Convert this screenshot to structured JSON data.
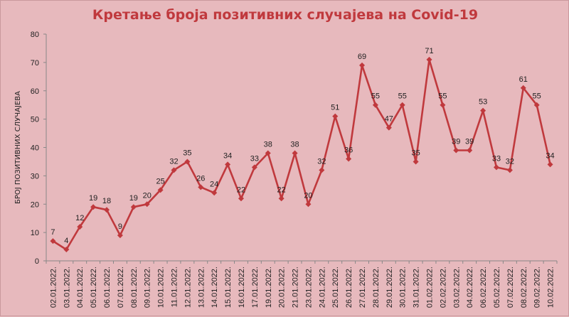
{
  "chart_data": {
    "type": "line",
    "title": "Кретање броја позитивних случајева на Covid-19",
    "xlabel": "",
    "ylabel": "БРОЈ ПОЗИТИВНИХ СЛУЧАЈЕВА",
    "ylim": [
      0,
      80
    ],
    "yticks": [
      0,
      10,
      20,
      30,
      40,
      50,
      60,
      70,
      80
    ],
    "grid": false,
    "legend": "none",
    "line_color": "#c0393d",
    "categories": [
      "02.01.2022.",
      "03.01.2022.",
      "04.01.2022.",
      "05.01.2022.",
      "06.01.2022.",
      "07.01.2022.",
      "08.01.2022.",
      "09.01.2022.",
      "10.01.2022.",
      "11.01.2022.",
      "12.01.2022.",
      "13.01.2022.",
      "14.01.2022.",
      "15.01.2022.",
      "16.01.2022.",
      "17.01.2022.",
      "19.01.2022.",
      "20.01.2022.",
      "21.01.2022.",
      "23.01.2022.",
      "24.01.2022.",
      "25.01.2022.",
      "26.01.2022.",
      "27.01.2022.",
      "28.01.2022.",
      "29.01.2022.",
      "30.01.2022.",
      "31.01.2022.",
      "01.02.2022.",
      "02.02.2022.",
      "03.02.2022.",
      "04.02.2022.",
      "06.02.2022.",
      "05.02.2022.",
      "07.02.2022.",
      "08.02.2022.",
      "09.02.2022.",
      "10.02.2022."
    ],
    "values": [
      7,
      4,
      12,
      19,
      18,
      9,
      19,
      20,
      25,
      32,
      35,
      26,
      24,
      34,
      22,
      33,
      38,
      22,
      38,
      20,
      32,
      51,
      36,
      69,
      55,
      47,
      55,
      35,
      71,
      55,
      39,
      39,
      53,
      33,
      32,
      61,
      55,
      34
    ]
  }
}
